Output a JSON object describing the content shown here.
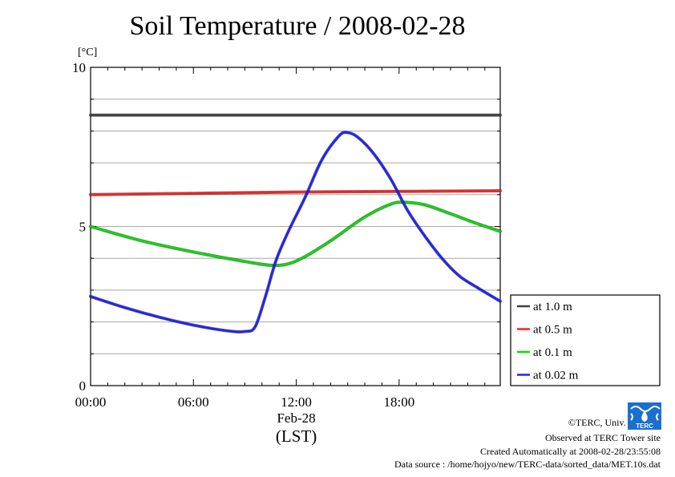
{
  "chart_data": {
    "type": "line",
    "title": "Soil Temperature / 2008-02-28",
    "ylabel": "[°C]",
    "xlabel_date": "Feb-28",
    "xlabel_tz": "(LST)",
    "ylim": [
      0,
      10
    ],
    "xlim": [
      0,
      23.9
    ],
    "y_ticks": [
      "0",
      "5",
      "10"
    ],
    "x_ticks": [
      {
        "value": 0,
        "label": "00:00"
      },
      {
        "value": 6,
        "label": "06:00"
      },
      {
        "value": 12,
        "label": "12:00"
      },
      {
        "value": 18,
        "label": "18:00"
      }
    ],
    "grid": true,
    "legend_position": "right",
    "series": [
      {
        "name": "at 1.0 m",
        "color": "#404040",
        "x": [
          0,
          6,
          12,
          18,
          23.9
        ],
        "values": [
          8.5,
          8.5,
          8.5,
          8.5,
          8.5
        ]
      },
      {
        "name": "at 0.5 m",
        "color": "#ff2020",
        "x": [
          0,
          6,
          12,
          18,
          23.9
        ],
        "values": [
          6.0,
          6.04,
          6.08,
          6.1,
          6.12
        ]
      },
      {
        "name": "at 0.1 m",
        "color": "#00e000",
        "x": [
          0,
          3,
          6,
          9,
          10.5,
          11.5,
          12.5,
          14,
          16,
          17.5,
          18.3,
          19.5,
          21,
          22.5,
          23.9
        ],
        "values": [
          5.0,
          4.55,
          4.2,
          3.9,
          3.78,
          3.82,
          4.05,
          4.55,
          5.3,
          5.7,
          5.76,
          5.68,
          5.4,
          5.1,
          4.85
        ]
      },
      {
        "name": "at 0.02 m",
        "color": "#2020ff",
        "x": [
          0,
          2,
          4,
          6,
          8,
          9,
          9.6,
          10.2,
          10.8,
          11.5,
          12.5,
          13.5,
          14.5,
          15,
          15.6,
          16.5,
          17.5,
          18.5,
          19.5,
          20.5,
          21.5,
          22.5,
          23.9
        ],
        "values": [
          2.8,
          2.45,
          2.15,
          1.9,
          1.72,
          1.7,
          1.85,
          2.8,
          3.9,
          4.8,
          5.9,
          7.1,
          7.85,
          7.95,
          7.8,
          7.3,
          6.5,
          5.5,
          4.7,
          4.0,
          3.45,
          3.1,
          2.65
        ]
      }
    ]
  },
  "footer": {
    "copyright": "©TERC, Univ. Tsukuba",
    "site": "Observed at TERC Tower site",
    "created": "Created Automatically at 2008-02-28/23:55:08",
    "source": "Data source : /home/hojyo/new/TERC-data/sorted_data/MET.10s.dat"
  },
  "logo_text": "TERC"
}
